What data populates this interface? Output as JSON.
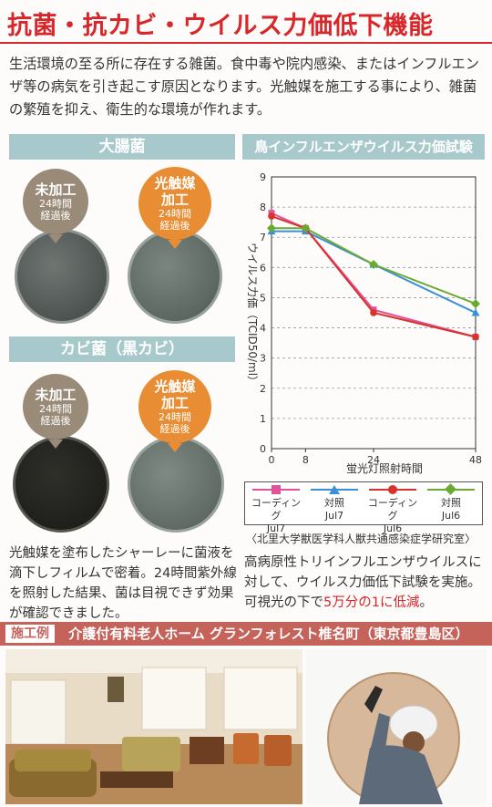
{
  "title": "抗菌・抗カビ・ウイルス力価低下機能",
  "intro": "生活環境の至る所に存在する雑菌。食中毒や院内感染、またはインフルエンザ等の病気を引き起こす原因となります。光触媒を施工する事により、雑菌の繁殖を抑え、衛生的な環境が作れます。",
  "bacteria_section": {
    "title": "大腸菌",
    "untreated": {
      "label": "未加工",
      "sub1": "24時間",
      "sub2": "経過後"
    },
    "treated": {
      "label1": "光触媒",
      "label2": "加工",
      "sub1": "24時間",
      "sub2": "経過後"
    }
  },
  "mold_section": {
    "title": "カビ菌（黒カビ）",
    "untreated": {
      "label": "未加工",
      "sub1": "24時間",
      "sub2": "経過後"
    },
    "treated": {
      "label1": "光触媒",
      "label2": "加工",
      "sub1": "24時間",
      "sub2": "経過後"
    }
  },
  "left_caption": "光触媒を塗布したシャーレーに菌液を滴下しフィルムで密着。24時間紫外線を照射した結果、菌は目視できず効果が確認できました。",
  "colors": {
    "accent_red": "#d8262b",
    "band": "#a8c9cb",
    "bubble_gray": "#9a8b78",
    "bubble_orange": "#e88d33",
    "case_bar": "#c5625a"
  },
  "chart_data": {
    "type": "line",
    "title": "鳥インフルエンザウイルス力価試験",
    "xlabel": "蛍光灯照射時間",
    "ylabel": "ウイルス力価（TCID50/ml）",
    "x": [
      0,
      8,
      24,
      48
    ],
    "xlim": [
      0,
      48
    ],
    "ylim": [
      0,
      9
    ],
    "yticks": [
      0,
      1,
      2,
      3,
      4,
      5,
      6,
      7,
      8,
      9
    ],
    "grid": "horizontal-dashed",
    "series": [
      {
        "name": "コーディング Jul7",
        "line1": "コーディング",
        "line2": "Jul7",
        "color": "#e0529a",
        "marker": "square",
        "values": [
          7.8,
          7.3,
          4.6,
          3.7
        ]
      },
      {
        "name": "対照 Jul7",
        "line1": "対照",
        "line2": "Jul7",
        "color": "#3a8fd8",
        "marker": "triangle",
        "values": [
          7.2,
          7.2,
          6.1,
          4.5
        ]
      },
      {
        "name": "コーディング Jul6",
        "line1": "コーディング",
        "line2": "Jul6",
        "color": "#d9322c",
        "marker": "circle",
        "values": [
          7.7,
          7.3,
          4.5,
          3.7
        ]
      },
      {
        "name": "対照 Jul6",
        "line1": "対照",
        "line2": "Jul6",
        "color": "#6aaa32",
        "marker": "diamond",
        "values": [
          7.3,
          7.3,
          6.1,
          4.8
        ]
      }
    ]
  },
  "source": "〈北里大学獣医学科人獣共通感染症学研究室〉",
  "right_caption_a": "高病原性トリインフルエンザウイルスに対して、ウイルス力価低下試験を実施。可視光の下で",
  "right_caption_highlight": "5万分の1に低減",
  "right_caption_b": "。",
  "case_example": {
    "tag": "施工例",
    "name": "介護付有料老人ホーム グランフォレスト椎名町（東京都豊島区）"
  }
}
